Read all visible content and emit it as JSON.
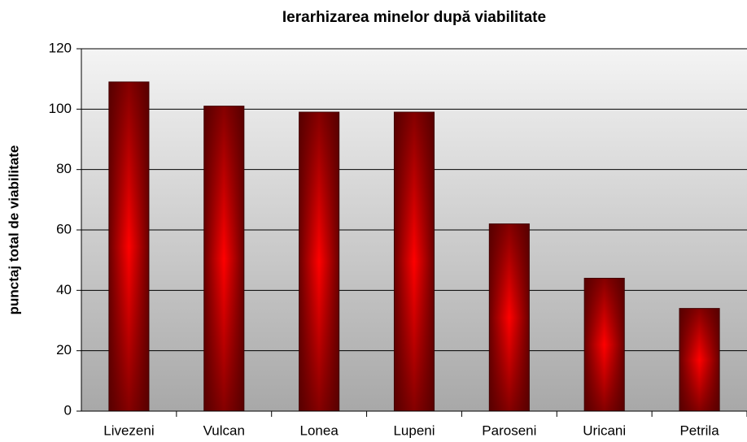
{
  "chart_data": {
    "type": "bar",
    "title": "Ierarhizarea minelor după viabilitate",
    "y_label": "punctaj total de viabilitate",
    "categories": [
      "Livezeni",
      "Vulcan",
      "Lonea",
      "Lupeni",
      "Paroseni",
      "Uricani",
      "Petrila"
    ],
    "values": [
      109,
      101,
      99,
      99,
      62,
      44,
      34
    ],
    "color": "#ff0000",
    "ylim": [
      0,
      120
    ],
    "yticks": [
      0,
      20,
      40,
      60,
      80,
      100,
      120
    ],
    "grid": true
  }
}
